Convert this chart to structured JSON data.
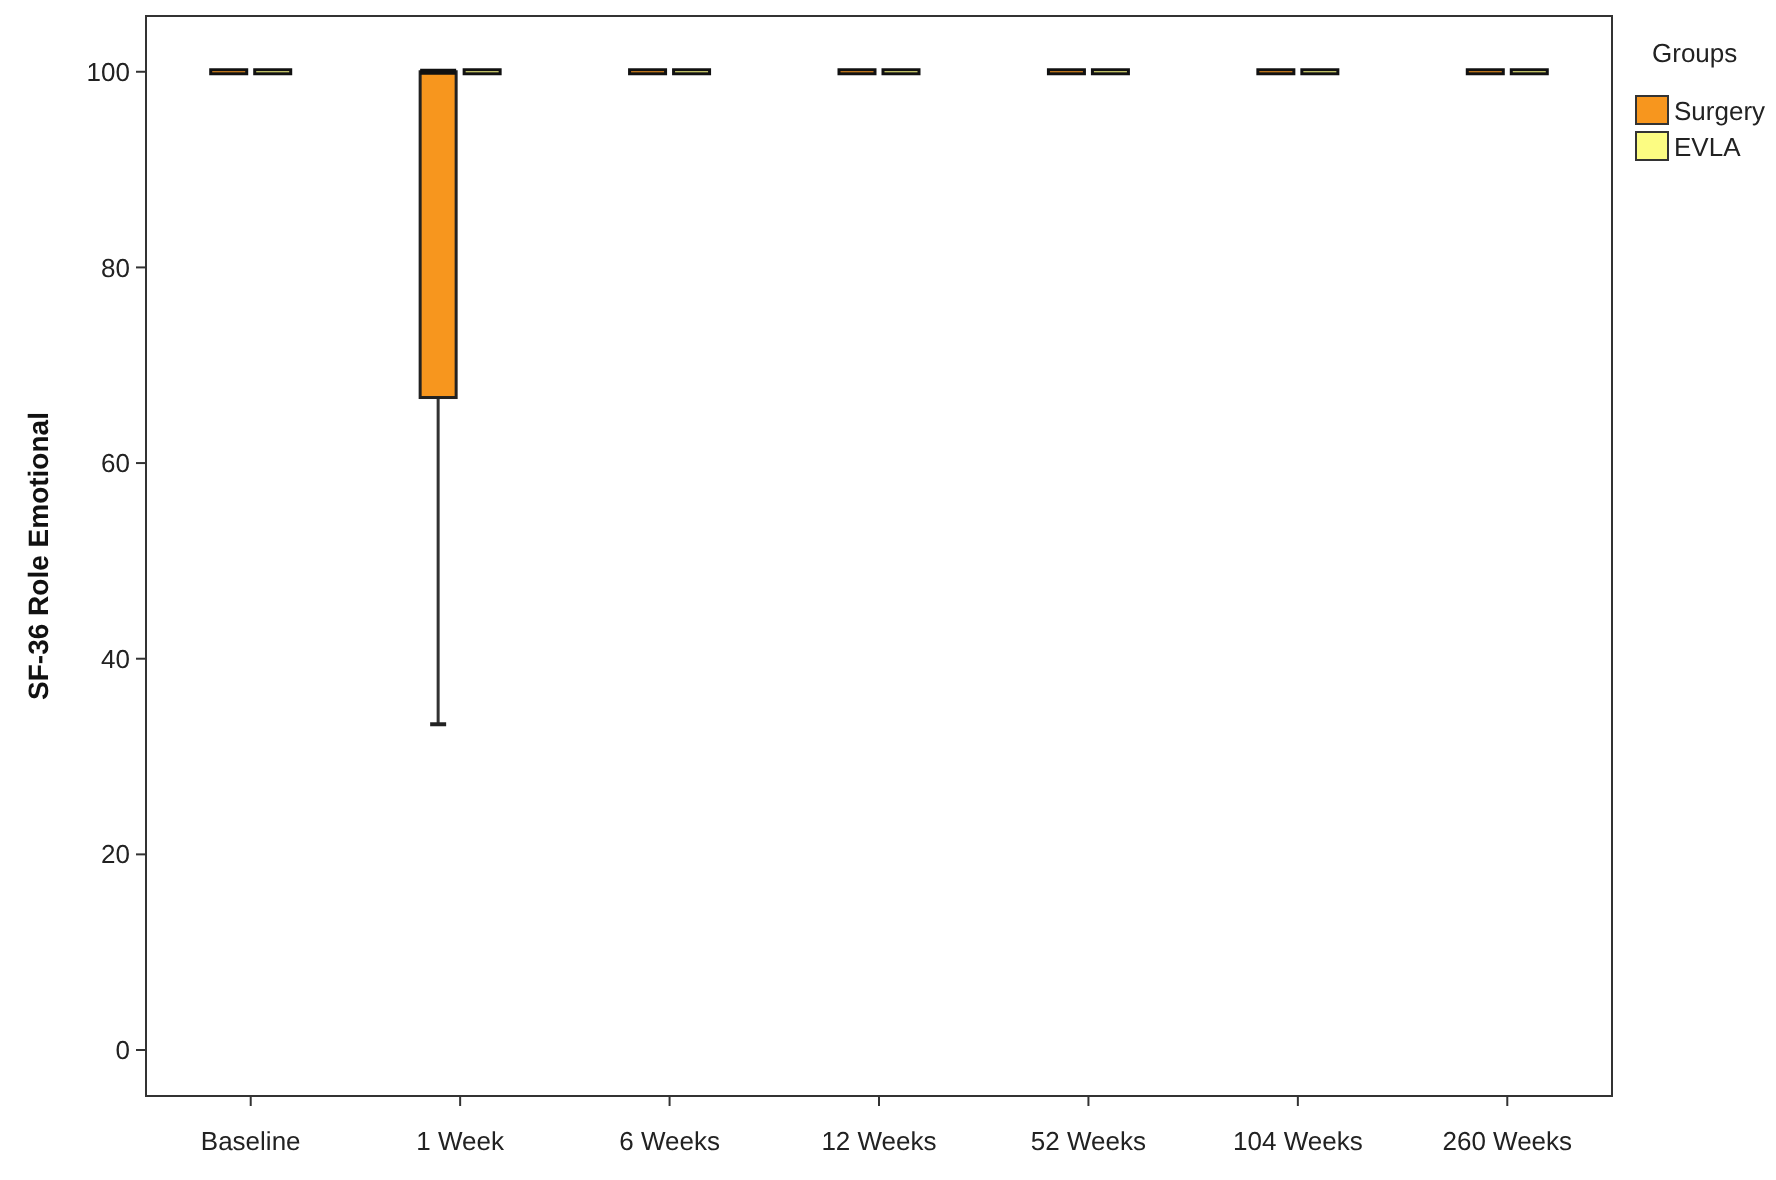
{
  "chart_data": {
    "type": "box",
    "ylabel": "SF-36 Role Emotional",
    "legend_title": "Groups",
    "legend": "top right",
    "grid": false,
    "categories": [
      "Baseline",
      "1 Week",
      "6 Weeks",
      "12 Weeks",
      "52 Weeks",
      "104 Weeks",
      "260 Weeks"
    ],
    "ylim": [
      -4.7,
      105.7
    ],
    "yticks": [
      0,
      20,
      40,
      60,
      80,
      100
    ],
    "series": [
      {
        "name": "Surgery",
        "color": "#f7961e",
        "boxes": [
          {
            "low": 100,
            "q1": 100,
            "median": 100,
            "q3": 100,
            "high": 100
          },
          {
            "low": 33.3,
            "q1": 66.7,
            "median": 100,
            "q3": 100,
            "high": 100
          },
          {
            "low": 100,
            "q1": 100,
            "median": 100,
            "q3": 100,
            "high": 100
          },
          {
            "low": 100,
            "q1": 100,
            "median": 100,
            "q3": 100,
            "high": 100
          },
          {
            "low": 100,
            "q1": 100,
            "median": 100,
            "q3": 100,
            "high": 100
          },
          {
            "low": 100,
            "q1": 100,
            "median": 100,
            "q3": 100,
            "high": 100
          },
          {
            "low": 100,
            "q1": 100,
            "median": 100,
            "q3": 100,
            "high": 100
          }
        ]
      },
      {
        "name": "EVLA",
        "color": "#fcfc82",
        "boxes": [
          {
            "low": 100,
            "q1": 100,
            "median": 100,
            "q3": 100,
            "high": 100
          },
          {
            "low": 100,
            "q1": 100,
            "median": 100,
            "q3": 100,
            "high": 100
          },
          {
            "low": 100,
            "q1": 100,
            "median": 100,
            "q3": 100,
            "high": 100
          },
          {
            "low": 100,
            "q1": 100,
            "median": 100,
            "q3": 100,
            "high": 100
          },
          {
            "low": 100,
            "q1": 100,
            "median": 100,
            "q3": 100,
            "high": 100
          },
          {
            "low": 100,
            "q1": 100,
            "median": 100,
            "q3": 100,
            "high": 100
          },
          {
            "low": 100,
            "q1": 100,
            "median": 100,
            "q3": 100,
            "high": 100
          }
        ]
      }
    ]
  }
}
